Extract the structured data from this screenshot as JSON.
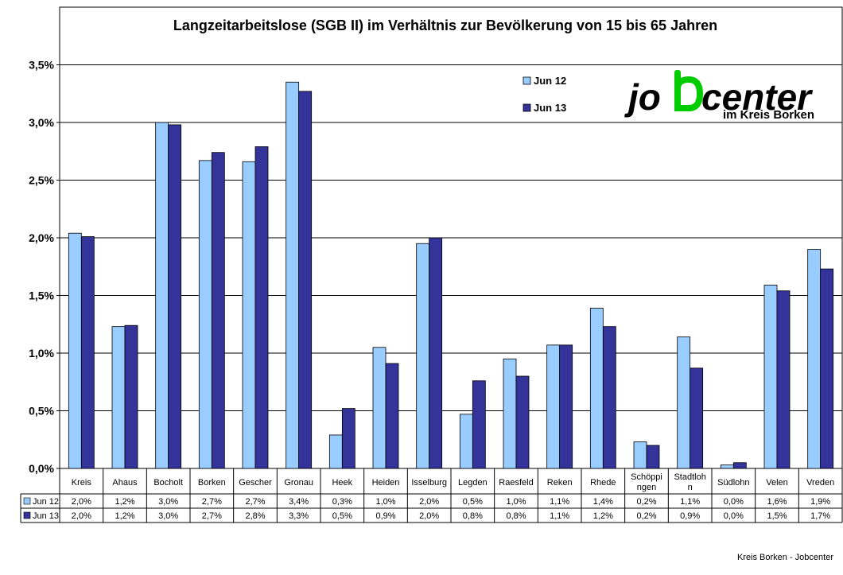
{
  "chart_data": {
    "type": "bar",
    "title": "Langzeitarbeitslose (SGB II) im Verhältnis zur Bevölkerung von 15 bis 65 Jahren",
    "xlabel": "",
    "ylabel": "",
    "ylim": [
      0,
      4.0
    ],
    "y_ticks": [
      {
        "value": 0.0,
        "label": "0,0%"
      },
      {
        "value": 0.5,
        "label": "0,5%"
      },
      {
        "value": 1.0,
        "label": "1,0%"
      },
      {
        "value": 1.5,
        "label": "1,5%"
      },
      {
        "value": 2.0,
        "label": "2,0%"
      },
      {
        "value": 2.5,
        "label": "2,5%"
      },
      {
        "value": 3.0,
        "label": "3,0%"
      },
      {
        "value": 3.5,
        "label": "3,5%"
      }
    ],
    "grid": true,
    "legend_position": "top-right",
    "categories": [
      [
        "Kreis"
      ],
      [
        "Ahaus"
      ],
      [
        "Bocholt"
      ],
      [
        "Borken"
      ],
      [
        "Gescher"
      ],
      [
        "Gronau"
      ],
      [
        "Heek"
      ],
      [
        "Heiden"
      ],
      [
        "Isselburg"
      ],
      [
        "Legden"
      ],
      [
        "Raesfeld"
      ],
      [
        "Reken"
      ],
      [
        "Rhede"
      ],
      [
        "Schöppi",
        "ngen"
      ],
      [
        "Stadtloh",
        "n"
      ],
      [
        "Südlohn"
      ],
      [
        "Velen"
      ],
      [
        "Vreden"
      ]
    ],
    "series": [
      {
        "name": "Jun 12",
        "color": "#99ccff",
        "values": [
          2.04,
          1.23,
          3.0,
          2.67,
          2.66,
          3.35,
          0.29,
          1.05,
          1.95,
          0.47,
          0.95,
          1.07,
          1.39,
          0.23,
          1.14,
          0.03,
          1.59,
          1.9
        ],
        "labels": [
          "2,0%",
          "1,2%",
          "3,0%",
          "2,7%",
          "2,7%",
          "3,4%",
          "0,3%",
          "1,0%",
          "2,0%",
          "0,5%",
          "1,0%",
          "1,1%",
          "1,4%",
          "0,2%",
          "1,1%",
          "0,0%",
          "1,6%",
          "1,9%"
        ]
      },
      {
        "name": "Jun 13",
        "color": "#333399",
        "values": [
          2.01,
          1.24,
          2.98,
          2.74,
          2.79,
          3.27,
          0.52,
          0.91,
          2.0,
          0.76,
          0.8,
          1.07,
          1.23,
          0.2,
          0.87,
          0.05,
          1.54,
          1.73
        ],
        "labels": [
          "2,0%",
          "1,2%",
          "3,0%",
          "2,7%",
          "2,8%",
          "3,3%",
          "0,5%",
          "0,9%",
          "2,0%",
          "0,8%",
          "0,8%",
          "1,1%",
          "1,2%",
          "0,2%",
          "0,9%",
          "0,0%",
          "1,5%",
          "1,7%"
        ]
      }
    ]
  },
  "logo": {
    "wordmark_left": "jo",
    "wordmark_right": "center",
    "subtitle": "im Kreis Borken",
    "accent_color": "#00cc00"
  },
  "footer": "Kreis Borken - Jobcenter"
}
